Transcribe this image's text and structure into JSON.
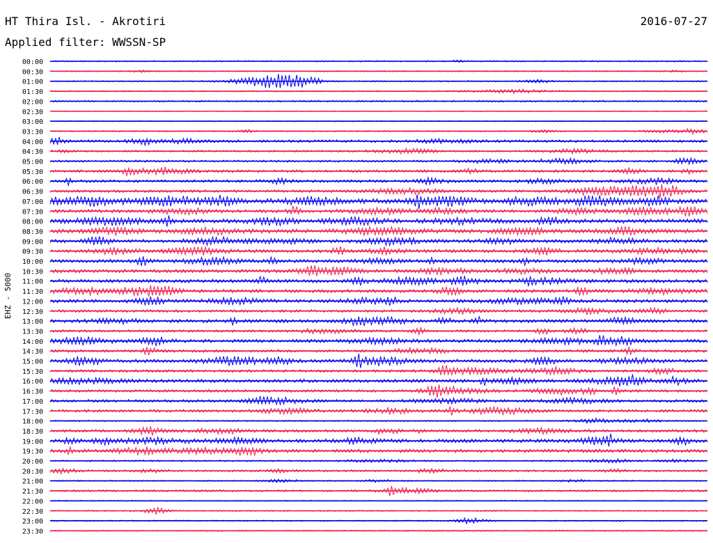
{
  "header": {
    "station": "HT Thira Isl. - Akrotiri",
    "date": "2016-07-27",
    "filter": "Applied filter: WWSSN-SP"
  },
  "chart_data": {
    "type": "line",
    "title": "HT Thira Isl. - Akrotiri",
    "date": "2016-07-27",
    "filter": "Applied filter: WWSSN-SP",
    "ylabel": "EHZ - 5000",
    "colors": [
      "#0000ee",
      "#ee1c4a"
    ],
    "rows": [
      {
        "time": "00:00",
        "base": 1,
        "events": [
          [
            0.62,
            1,
            0.01
          ]
        ]
      },
      {
        "time": "00:30",
        "base": 1,
        "events": [
          [
            0.14,
            1.5,
            0.01
          ],
          [
            0.95,
            1.5,
            0.01
          ]
        ]
      },
      {
        "time": "01:00",
        "base": 1,
        "events": [
          [
            0.33,
            7,
            0.05
          ],
          [
            0.36,
            3,
            0.04
          ],
          [
            0.385,
            4,
            0.03
          ],
          [
            0.74,
            2,
            0.02
          ]
        ]
      },
      {
        "time": "01:30",
        "base": 1,
        "events": [
          [
            0.7,
            2.5,
            0.05
          ]
        ]
      },
      {
        "time": "02:00",
        "base": 1.2,
        "events": []
      },
      {
        "time": "02:30",
        "base": 0.8,
        "events": []
      },
      {
        "time": "03:00",
        "base": 0.8,
        "events": []
      },
      {
        "time": "03:30",
        "base": 1,
        "events": [
          [
            0.3,
            2,
            0.01
          ],
          [
            0.75,
            1.5,
            0.02
          ],
          [
            0.93,
            2,
            0.03
          ],
          [
            0.98,
            3,
            0.02
          ]
        ]
      },
      {
        "time": "04:00",
        "base": 2,
        "events": [
          [
            0.01,
            4,
            0.01
          ],
          [
            0.14,
            4,
            0.02
          ],
          [
            0.2,
            2.5,
            0.03
          ],
          [
            0.6,
            2,
            0.04
          ]
        ]
      },
      {
        "time": "04:30",
        "base": 1.5,
        "events": [
          [
            0.02,
            2,
            0.01
          ],
          [
            0.54,
            3,
            0.04
          ],
          [
            0.8,
            2.5,
            0.04
          ]
        ]
      },
      {
        "time": "05:00",
        "base": 1.5,
        "events": [
          [
            0.67,
            2,
            0.05
          ],
          [
            0.78,
            3,
            0.04
          ],
          [
            0.97,
            4,
            0.02
          ]
        ]
      },
      {
        "time": "05:30",
        "base": 2,
        "events": [
          [
            0.12,
            6,
            0.01
          ],
          [
            0.17,
            4,
            0.04
          ],
          [
            0.64,
            3,
            0.01
          ],
          [
            0.88,
            3,
            0.02
          ],
          [
            0.97,
            3,
            0.01
          ]
        ]
      },
      {
        "time": "06:00",
        "base": 2,
        "events": [
          [
            0.03,
            6,
            0.005
          ],
          [
            0.35,
            3,
            0.02
          ],
          [
            0.58,
            4,
            0.02
          ],
          [
            0.75,
            2.5,
            0.03
          ],
          [
            0.92,
            3,
            0.04
          ]
        ]
      },
      {
        "time": "06:30",
        "base": 2,
        "events": [
          [
            0.54,
            3,
            0.05
          ],
          [
            0.83,
            5,
            0.04
          ],
          [
            0.9,
            7,
            0.04
          ],
          [
            0.94,
            6,
            0.02
          ]
        ]
      },
      {
        "time": "07:00",
        "base": 3.5,
        "events": [
          [
            0.0,
            6,
            0.01
          ],
          [
            0.06,
            5,
            0.04
          ],
          [
            0.18,
            5,
            0.05
          ],
          [
            0.26,
            5,
            0.02
          ],
          [
            0.4,
            4,
            0.04
          ],
          [
            0.56,
            8,
            0.005
          ],
          [
            0.6,
            5,
            0.04
          ],
          [
            0.73,
            4,
            0.04
          ],
          [
            0.83,
            5,
            0.04
          ],
          [
            0.92,
            5,
            0.02
          ]
        ]
      },
      {
        "time": "07:30",
        "base": 2.5,
        "events": [
          [
            0.2,
            3,
            0.04
          ],
          [
            0.37,
            5,
            0.01
          ],
          [
            0.5,
            3,
            0.04
          ],
          [
            0.6,
            3,
            0.03
          ],
          [
            0.8,
            3,
            0.03
          ],
          [
            0.9,
            4,
            0.03
          ],
          [
            0.97,
            5,
            0.03
          ]
        ]
      },
      {
        "time": "08:00",
        "base": 3,
        "events": [
          [
            0.09,
            4,
            0.05
          ],
          [
            0.18,
            6,
            0.005
          ],
          [
            0.34,
            4,
            0.03
          ],
          [
            0.46,
            4,
            0.04
          ],
          [
            0.62,
            3,
            0.04
          ],
          [
            0.76,
            4,
            0.02
          ]
        ]
      },
      {
        "time": "08:30",
        "base": 3,
        "events": [
          [
            0.1,
            4,
            0.03
          ],
          [
            0.24,
            3,
            0.04
          ],
          [
            0.5,
            4,
            0.05
          ],
          [
            0.72,
            4,
            0.03
          ],
          [
            0.88,
            4,
            0.03
          ]
        ]
      },
      {
        "time": "09:00",
        "base": 2.5,
        "events": [
          [
            0.07,
            5,
            0.02
          ],
          [
            0.25,
            4,
            0.04
          ],
          [
            0.35,
            3,
            0.04
          ],
          [
            0.52,
            4,
            0.04
          ],
          [
            0.69,
            3,
            0.03
          ],
          [
            0.86,
            3,
            0.04
          ]
        ]
      },
      {
        "time": "09:30",
        "base": 2.5,
        "events": [
          [
            0.1,
            4,
            0.03
          ],
          [
            0.22,
            4,
            0.04
          ],
          [
            0.44,
            5,
            0.01
          ],
          [
            0.51,
            4,
            0.02
          ],
          [
            0.75,
            5,
            0.02
          ],
          [
            0.92,
            3,
            0.05
          ]
        ]
      },
      {
        "time": "10:00",
        "base": 2.5,
        "events": [
          [
            0.14,
            5,
            0.01
          ],
          [
            0.25,
            4,
            0.04
          ],
          [
            0.34,
            7,
            0.005
          ],
          [
            0.5,
            3,
            0.03
          ],
          [
            0.58,
            5,
            0.005
          ],
          [
            0.72,
            6,
            0.005
          ],
          [
            0.9,
            3,
            0.03
          ]
        ]
      },
      {
        "time": "10:30",
        "base": 2.5,
        "events": [
          [
            0.4,
            5,
            0.02
          ],
          [
            0.44,
            4,
            0.03
          ],
          [
            0.6,
            3,
            0.04
          ],
          [
            0.72,
            3,
            0.03
          ],
          [
            0.86,
            3,
            0.03
          ]
        ]
      },
      {
        "time": "11:00",
        "base": 2.5,
        "events": [
          [
            0.32,
            4,
            0.01
          ],
          [
            0.47,
            5,
            0.01
          ],
          [
            0.55,
            4,
            0.04
          ],
          [
            0.63,
            5,
            0.02
          ],
          [
            0.75,
            3,
            0.04
          ],
          [
            0.73,
            5,
            0.005
          ]
        ]
      },
      {
        "time": "11:30",
        "base": 2.5,
        "events": [
          [
            0.05,
            4,
            0.04
          ],
          [
            0.14,
            4,
            0.04
          ],
          [
            0.17,
            5,
            0.02
          ],
          [
            0.61,
            4,
            0.02
          ],
          [
            0.81,
            5,
            0.01
          ],
          [
            0.93,
            3,
            0.04
          ]
        ]
      },
      {
        "time": "12:00",
        "base": 2.5,
        "events": [
          [
            0.15,
            5,
            0.02
          ],
          [
            0.28,
            3,
            0.04
          ],
          [
            0.48,
            3,
            0.03
          ],
          [
            0.52,
            4,
            0.01
          ],
          [
            0.72,
            3,
            0.05
          ],
          [
            0.78,
            4,
            0.01
          ]
        ]
      },
      {
        "time": "12:30",
        "base": 2,
        "events": [
          [
            0.62,
            3,
            0.03
          ],
          [
            0.82,
            3,
            0.04
          ],
          [
            0.92,
            3,
            0.02
          ]
        ]
      },
      {
        "time": "13:00",
        "base": 2.5,
        "events": [
          [
            0.1,
            3,
            0.03
          ],
          [
            0.28,
            5,
            0.005
          ],
          [
            0.47,
            5,
            0.02
          ],
          [
            0.51,
            4,
            0.03
          ],
          [
            0.6,
            4,
            0.01
          ],
          [
            0.65,
            6,
            0.005
          ],
          [
            0.87,
            4,
            0.02
          ]
        ]
      },
      {
        "time": "13:30",
        "base": 1.8,
        "events": [
          [
            0.42,
            3,
            0.04
          ],
          [
            0.56,
            4,
            0.01
          ],
          [
            0.75,
            4,
            0.01
          ],
          [
            0.8,
            3,
            0.02
          ]
        ]
      },
      {
        "time": "14:00",
        "base": 2.5,
        "events": [
          [
            0.05,
            4,
            0.04
          ],
          [
            0.16,
            5,
            0.02
          ],
          [
            0.5,
            3,
            0.04
          ],
          [
            0.78,
            3,
            0.04
          ],
          [
            0.84,
            8,
            0.005
          ],
          [
            0.86,
            5,
            0.03
          ]
        ]
      },
      {
        "time": "14:30",
        "base": 2,
        "events": [
          [
            0.15,
            5,
            0.01
          ],
          [
            0.55,
            4,
            0.02
          ],
          [
            0.59,
            5,
            0.01
          ],
          [
            0.88,
            4,
            0.01
          ]
        ]
      },
      {
        "time": "15:00",
        "base": 2.5,
        "events": [
          [
            0.05,
            5,
            0.02
          ],
          [
            0.07,
            6,
            0.005
          ],
          [
            0.28,
            5,
            0.04
          ],
          [
            0.35,
            4,
            0.02
          ],
          [
            0.47,
            7,
            0.005
          ],
          [
            0.5,
            5,
            0.04
          ],
          [
            0.75,
            4,
            0.02
          ],
          [
            0.88,
            3,
            0.04
          ]
        ]
      },
      {
        "time": "15:30",
        "base": 2,
        "events": [
          [
            0.6,
            5,
            0.01
          ],
          [
            0.64,
            4,
            0.05
          ],
          [
            0.76,
            4,
            0.04
          ],
          [
            0.93,
            4,
            0.02
          ]
        ]
      },
      {
        "time": "16:00",
        "base": 2.5,
        "events": [
          [
            0.05,
            3,
            0.05
          ],
          [
            0.66,
            4,
            0.005
          ],
          [
            0.7,
            3,
            0.03
          ],
          [
            0.86,
            4,
            0.04
          ],
          [
            0.88,
            5,
            0.02
          ],
          [
            0.95,
            4,
            0.02
          ]
        ]
      },
      {
        "time": "16:30",
        "base": 2,
        "events": [
          [
            0.59,
            6,
            0.02
          ],
          [
            0.62,
            4,
            0.04
          ],
          [
            0.77,
            4,
            0.03
          ],
          [
            0.82,
            5,
            0.01
          ],
          [
            0.86,
            5,
            0.005
          ]
        ]
      },
      {
        "time": "17:00",
        "base": 2,
        "events": [
          [
            0.32,
            5,
            0.01
          ],
          [
            0.34,
            4,
            0.04
          ],
          [
            0.6,
            2.5,
            0.05
          ],
          [
            0.8,
            3,
            0.04
          ]
        ]
      },
      {
        "time": "17:30",
        "base": 2,
        "events": [
          [
            0.36,
            3,
            0.04
          ],
          [
            0.52,
            3,
            0.04
          ],
          [
            0.61,
            5,
            0.005
          ],
          [
            0.68,
            4,
            0.05
          ]
        ]
      },
      {
        "time": "18:00",
        "base": 1,
        "events": [
          [
            0.83,
            3,
            0.03
          ],
          [
            0.9,
            2,
            0.03
          ]
        ]
      },
      {
        "time": "18:30",
        "base": 2,
        "events": [
          [
            0.15,
            5,
            0.02
          ],
          [
            0.26,
            3,
            0.04
          ],
          [
            0.5,
            3,
            0.005
          ],
          [
            0.52,
            3,
            0.01
          ],
          [
            0.56,
            3,
            0.005
          ],
          [
            0.75,
            3,
            0.04
          ]
        ]
      },
      {
        "time": "19:00",
        "base": 2.5,
        "events": [
          [
            0.03,
            4,
            0.01
          ],
          [
            0.08,
            4,
            0.02
          ],
          [
            0.16,
            3,
            0.05
          ],
          [
            0.28,
            3,
            0.04
          ],
          [
            0.47,
            3,
            0.03
          ],
          [
            0.83,
            4,
            0.03
          ],
          [
            0.85,
            8,
            0.005
          ],
          [
            0.96,
            6,
            0.01
          ]
        ]
      },
      {
        "time": "19:30",
        "base": 2.5,
        "events": [
          [
            0.03,
            5,
            0.005
          ],
          [
            0.14,
            4,
            0.04
          ],
          [
            0.24,
            3,
            0.04
          ],
          [
            0.3,
            5,
            0.02
          ]
        ]
      },
      {
        "time": "20:00",
        "base": 1.2,
        "events": [
          [
            0.5,
            1.5,
            0.05
          ],
          [
            0.85,
            2,
            0.04
          ],
          [
            0.95,
            1.5,
            0.02
          ]
        ]
      },
      {
        "time": "20:30",
        "base": 1.5,
        "events": [
          [
            0.02,
            3,
            0.02
          ],
          [
            0.15,
            2,
            0.02
          ],
          [
            0.35,
            2,
            0.02
          ],
          [
            0.58,
            2,
            0.03
          ],
          [
            0.86,
            2,
            0.02
          ]
        ]
      },
      {
        "time": "21:00",
        "base": 1,
        "events": [
          [
            0.35,
            1.5,
            0.03
          ],
          [
            0.5,
            1.5,
            0.02
          ],
          [
            0.8,
            1.5,
            0.02
          ]
        ]
      },
      {
        "time": "21:30",
        "base": 1.5,
        "events": [
          [
            0.52,
            5,
            0.01
          ],
          [
            0.55,
            3,
            0.04
          ]
        ]
      },
      {
        "time": "22:00",
        "base": 0.8,
        "events": []
      },
      {
        "time": "22:30",
        "base": 1,
        "events": [
          [
            0.16,
            4,
            0.02
          ]
        ]
      },
      {
        "time": "23:00",
        "base": 1,
        "events": [
          [
            0.64,
            4,
            0.02
          ]
        ]
      },
      {
        "time": "23:30",
        "base": 1,
        "events": []
      }
    ]
  }
}
